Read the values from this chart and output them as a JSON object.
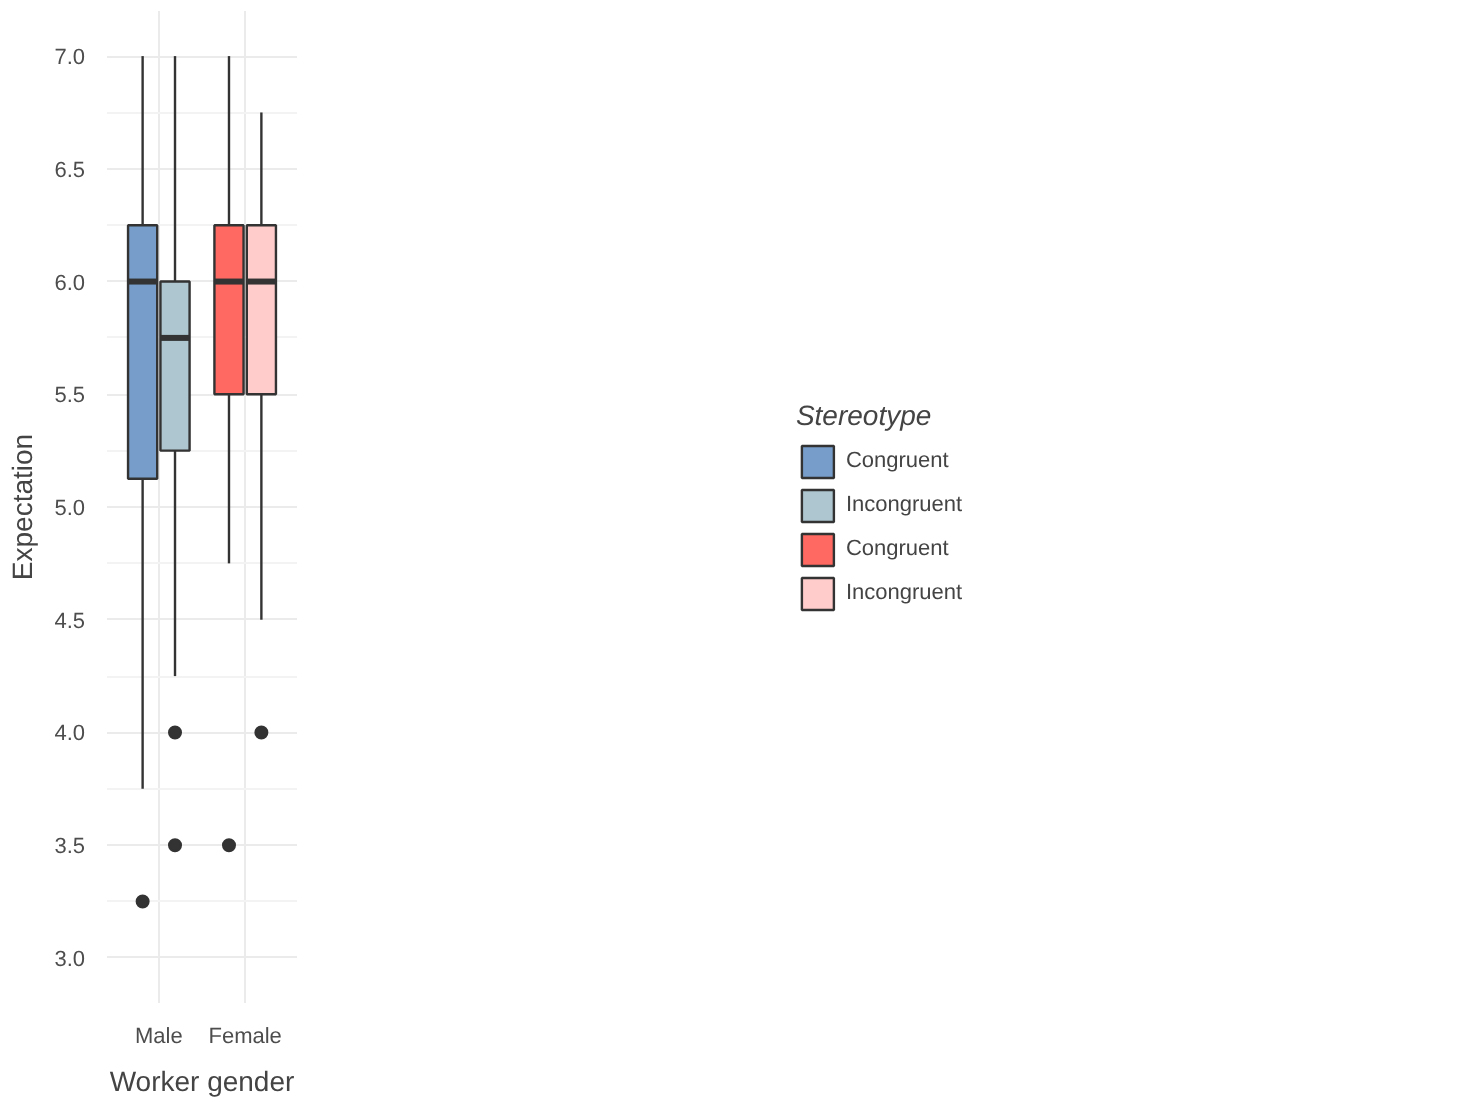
{
  "chart_data": {
    "type": "box",
    "xlabel": "Worker gender",
    "ylabel": "Expectation",
    "legend_title": "Stereotype",
    "categories": [
      "Male",
      "Female"
    ],
    "ylim": [
      2.8,
      7.2
    ],
    "yticks": [
      {
        "value": 3,
        "label": "3.0"
      },
      {
        "value": 3.5,
        "label": "3.5"
      },
      {
        "value": 4,
        "label": "4.0"
      },
      {
        "value": 4.5,
        "label": "4.5"
      },
      {
        "value": 5,
        "label": "5.0"
      },
      {
        "value": 5.5,
        "label": "5.5"
      },
      {
        "value": 6,
        "label": "6.0"
      },
      {
        "value": 6.5,
        "label": "6.5"
      },
      {
        "value": 7,
        "label": "7.0"
      }
    ],
    "grid": true,
    "legend": "right",
    "series": [
      {
        "name": "Congruent",
        "color": "#779ecb",
        "boxes": [
          {
            "low": 3.75,
            "q1": 5.125,
            "median": 6.0,
            "q3": 6.25,
            "high": 7.0,
            "outliers": [
              3.25
            ]
          },
          null
        ]
      },
      {
        "name": "Incongruent",
        "color": "#aec6cf",
        "boxes": [
          {
            "low": 4.25,
            "q1": 5.25,
            "median": 5.75,
            "q3": 6.0,
            "high": 7.0,
            "outliers": [
              4.0,
              3.5
            ]
          },
          null
        ]
      },
      {
        "name": "Congruent",
        "color": "#ff6961",
        "boxes": [
          null,
          {
            "low": 4.75,
            "q1": 5.5,
            "median": 6.0,
            "q3": 6.25,
            "high": 7.0,
            "outliers": [
              3.5
            ]
          }
        ]
      },
      {
        "name": "Incongruent",
        "color": "#ffcccb",
        "boxes": [
          null,
          {
            "low": 4.5,
            "q1": 5.5,
            "median": 6.0,
            "q3": 6.25,
            "high": 6.75,
            "outliers": [
              4.0
            ]
          }
        ]
      }
    ]
  }
}
